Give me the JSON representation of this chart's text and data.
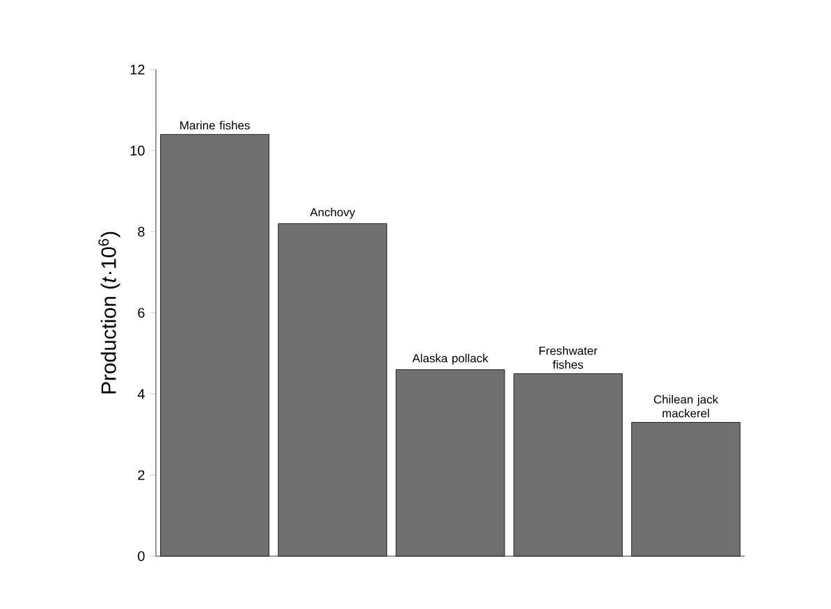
{
  "chart_data": {
    "type": "bar",
    "ylabel": "Production (*t*·10$^{6}$)",
    "categories": [
      "Marine fishes",
      "Anchovy",
      "Alaska pollack",
      "Freshwater fishes",
      "Chilean jack mackerel"
    ],
    "values": [
      10.4,
      8.2,
      4.6,
      4.5,
      3.3
    ],
    "color": "#707070",
    "ylim": [
      0,
      12
    ],
    "yticks": [
      0,
      2,
      4,
      6,
      8,
      10,
      12
    ]
  }
}
